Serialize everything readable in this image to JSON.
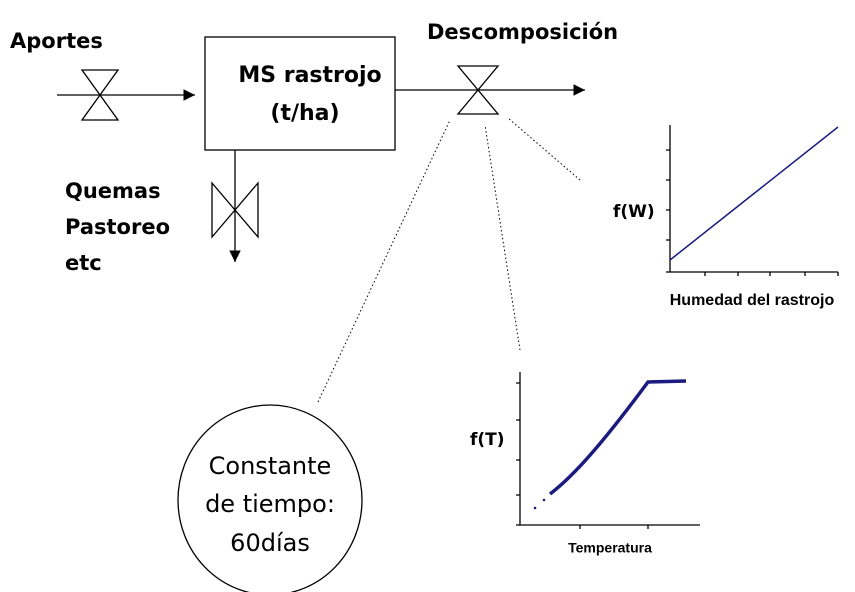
{
  "diagram": {
    "inflow": {
      "label": "Aportes"
    },
    "stock": {
      "line1": "MS rastrojo",
      "line2": "(t/ha)"
    },
    "outflow": {
      "label": "Descomposición"
    },
    "losses": {
      "lines": [
        "Quemas",
        "Pastoreo",
        "etc"
      ]
    },
    "moisture_chart": {
      "y_label": "f(W)",
      "x_label": "Humedad del rastrojo"
    },
    "temperature_chart": {
      "y_label": "f(T)",
      "x_label": "Temperatura"
    },
    "time_constant": {
      "lines": [
        "Constante",
        "de tiempo:",
        "60días"
      ]
    }
  }
}
